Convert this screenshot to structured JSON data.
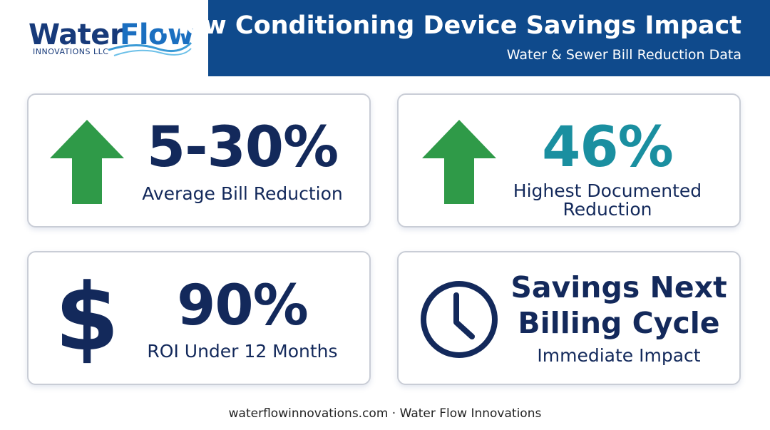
{
  "header": {
    "logo_word_1": "Water",
    "logo_word_2": "Flow",
    "logo_sub": "INNOVATIONS LLC",
    "title": "Flow Conditioning Device Savings Impact",
    "subtitle": "Water & Sewer Bill Reduction Data"
  },
  "cards": [
    {
      "value": "5-30%",
      "label": "Average Bill Reduction"
    },
    {
      "value": "46%",
      "label_lines": [
        "Highest Documented",
        "Reduction"
      ]
    },
    {
      "icon": "$",
      "value": "90%",
      "label": "ROI Under 12 Months"
    },
    {
      "heading_lines": [
        "Savings Next",
        "Billing Cycle"
      ],
      "label": "Immediate Impact"
    }
  ],
  "footer": "waterflowinnovations.com · Water Flow Innovations"
}
